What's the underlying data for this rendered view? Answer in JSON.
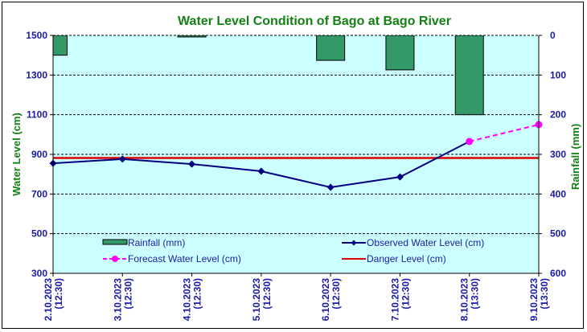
{
  "chart_data": {
    "type": "line",
    "title": "Water Level Condition  of Bago at Bago River",
    "xlabel": "",
    "ylabel": "Water Level (cm)",
    "y2label": "Rainfall (mm)",
    "categories": [
      [
        "2.10.2023",
        "(12:30)"
      ],
      [
        "3.10.2023",
        "(12:30)"
      ],
      [
        "4.10.2023",
        "(12:30)"
      ],
      [
        "5.10.2023",
        "(12:30)"
      ],
      [
        "6.10.2023",
        "(12:30)"
      ],
      [
        "7.10.2023",
        "(12:30)"
      ],
      [
        "8.10.2023",
        "(13:30)"
      ],
      [
        "9.10.2023",
        "(13:30)"
      ]
    ],
    "ylim": [
      300,
      1500
    ],
    "yticks": [
      "1500",
      "1300",
      "1100",
      "900",
      "700",
      "500",
      "300"
    ],
    "ytick_values": [
      1500,
      1300,
      1100,
      900,
      700,
      500,
      300
    ],
    "y2lim": [
      0,
      600
    ],
    "y2_inverted": true,
    "y2ticks": [
      "0",
      "100",
      "200",
      "300",
      "400",
      "500",
      "600"
    ],
    "y2tick_values": [
      0,
      100,
      200,
      300,
      400,
      500,
      600
    ],
    "grid": true,
    "series": [
      {
        "name": "Rainfall (mm)",
        "type": "bar",
        "axis": "right",
        "color": "#339966",
        "values": [
          50,
          0,
          4,
          0,
          63,
          87,
          200,
          null
        ]
      },
      {
        "name": "Observed Water Level (cm)",
        "type": "line",
        "axis": "left",
        "color": "#000080",
        "marker": "diamond",
        "values": [
          855,
          876,
          851,
          815,
          734,
          786,
          965,
          null
        ]
      },
      {
        "name": "Forecast Water Level (cm)",
        "type": "line",
        "axis": "left",
        "color": "#ff00ff",
        "marker": "circle",
        "dashed": true,
        "values": [
          null,
          null,
          null,
          null,
          null,
          null,
          965,
          1050
        ]
      },
      {
        "name": "Danger Level (cm)",
        "type": "line",
        "axis": "left",
        "color": "#e00000",
        "values": [
          882,
          882,
          882,
          882,
          882,
          882,
          882,
          882
        ]
      }
    ],
    "legend": {
      "placement": "bottom-inside",
      "items": [
        {
          "label": "Rainfall (mm)",
          "series": 0
        },
        {
          "label": "Observed Water Level (cm)",
          "series": 1
        },
        {
          "label": "Forecast Water Level (cm)",
          "series": 2
        },
        {
          "label": "Danger Level (cm)",
          "series": 3
        }
      ]
    },
    "plot_background": "#ccffff"
  }
}
